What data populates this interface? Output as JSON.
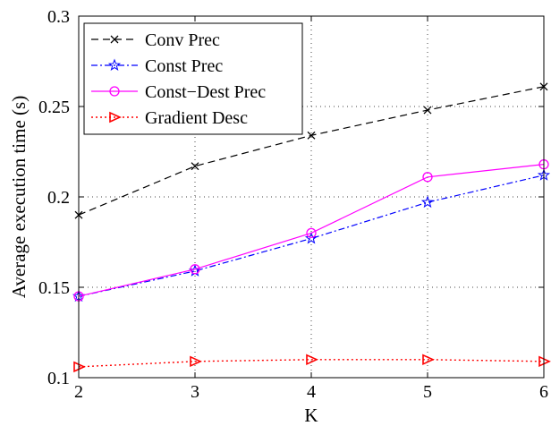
{
  "chart_data": {
    "type": "line",
    "title": "",
    "xlabel": "K",
    "ylabel": "Average execution time (s)",
    "x": [
      2,
      3,
      4,
      5,
      6
    ],
    "xlim": [
      2,
      6
    ],
    "ylim": [
      0.1,
      0.3
    ],
    "xticks": [
      "2",
      "3",
      "4",
      "5",
      "6"
    ],
    "yticks": [
      "0.1",
      "0.15",
      "0.2",
      "0.25",
      "0.3"
    ],
    "grid": true,
    "legend_position": "top-left",
    "series": [
      {
        "name": "Conv Prec",
        "values": [
          0.19,
          0.217,
          0.234,
          0.248,
          0.261
        ],
        "color": "#000000",
        "dash": "dashed",
        "marker": "x"
      },
      {
        "name": "Const Prec",
        "values": [
          0.145,
          0.159,
          0.177,
          0.197,
          0.212
        ],
        "color": "#0000ff",
        "dash": "dashdot",
        "marker": "star"
      },
      {
        "name": "Const−Dest Prec",
        "values": [
          0.145,
          0.16,
          0.18,
          0.211,
          0.218
        ],
        "color": "#ff00ff",
        "dash": "solid",
        "marker": "circle"
      },
      {
        "name": "Gradient Desc",
        "values": [
          0.106,
          0.109,
          0.11,
          0.11,
          0.109
        ],
        "color": "#ff0000",
        "dash": "dotted",
        "marker": "triangle-right"
      }
    ]
  }
}
